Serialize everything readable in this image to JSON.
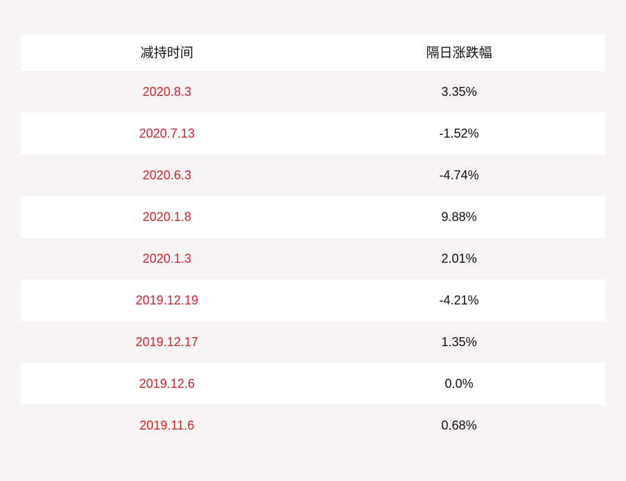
{
  "table": {
    "headers": [
      "减持时间",
      "隔日涨跌幅"
    ],
    "rows": [
      {
        "date": "2020.8.3",
        "change": "3.35%"
      },
      {
        "date": "2020.7.13",
        "change": "-1.52%"
      },
      {
        "date": "2020.6.3",
        "change": "-4.74%"
      },
      {
        "date": "2020.1.8",
        "change": "9.88%"
      },
      {
        "date": "2020.1.3",
        "change": "2.01%"
      },
      {
        "date": "2019.12.19",
        "change": "-4.21%"
      },
      {
        "date": "2019.12.17",
        "change": "1.35%"
      },
      {
        "date": "2019.12.6",
        "change": "0.0%"
      },
      {
        "date": "2019.11.6",
        "change": "0.68%"
      }
    ]
  },
  "colors": {
    "page_background": "#f8f4f5",
    "stripe": "#ffffff",
    "date_text": "#d6232b",
    "value_text": "#111111"
  }
}
